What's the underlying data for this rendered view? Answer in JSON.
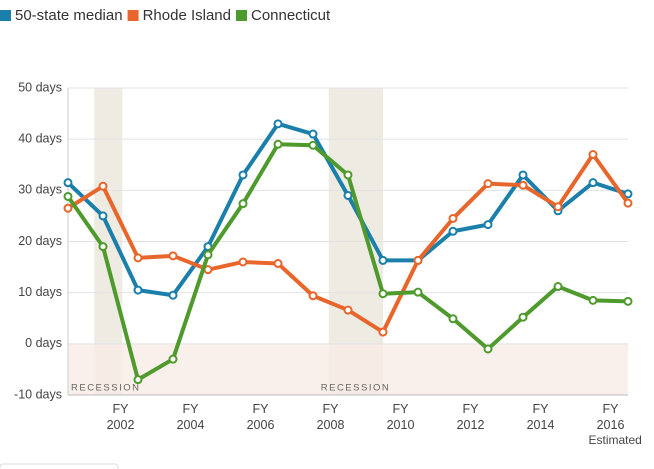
{
  "chart_data": {
    "type": "line",
    "categories": [
      null,
      null,
      "FY 2002",
      null,
      "FY 2004",
      null,
      "FY 2006",
      null,
      "FY 2008",
      null,
      "FY 2010",
      null,
      "FY 2012",
      null,
      "FY 2014",
      null,
      "FY 2016"
    ],
    "annotations": [
      "RECESSION",
      "RECESSION",
      "Estimated"
    ],
    "series": [
      {
        "name": "50-state median",
        "color": "#1a7fab",
        "values": [
          31.5,
          25,
          10.5,
          9.5,
          19,
          33,
          43,
          41,
          29,
          16.3,
          16.3,
          22,
          23.3,
          33,
          26,
          31.5,
          29.3
        ]
      },
      {
        "name": "Rhode Island",
        "color": "#e8662b",
        "values": [
          26.5,
          30.8,
          16.8,
          17.2,
          14.5,
          16,
          15.7,
          9.4,
          6.6,
          2.3,
          16.3,
          24.5,
          31.3,
          31,
          26.8,
          37,
          27.5
        ]
      },
      {
        "name": "Connecticut",
        "color": "#4f9a2c",
        "values": [
          28.8,
          19,
          -7,
          -3,
          17.4,
          27.4,
          39,
          38.8,
          33,
          9.8,
          10.1,
          4.9,
          -1,
          5.2,
          11.2,
          8.5,
          8.3
        ]
      }
    ],
    "ylim": [
      -10,
      50
    ],
    "yticks": [
      {
        "value": -10,
        "label": "-10 days"
      },
      {
        "value": 0,
        "label": "0 days"
      },
      {
        "value": 10,
        "label": "10 days"
      },
      {
        "value": 20,
        "label": "20 days"
      },
      {
        "value": 30,
        "label": "30 days"
      },
      {
        "value": 40,
        "label": "40 days"
      },
      {
        "value": 50,
        "label": "50 days"
      }
    ],
    "grid": true,
    "legend": "top"
  }
}
